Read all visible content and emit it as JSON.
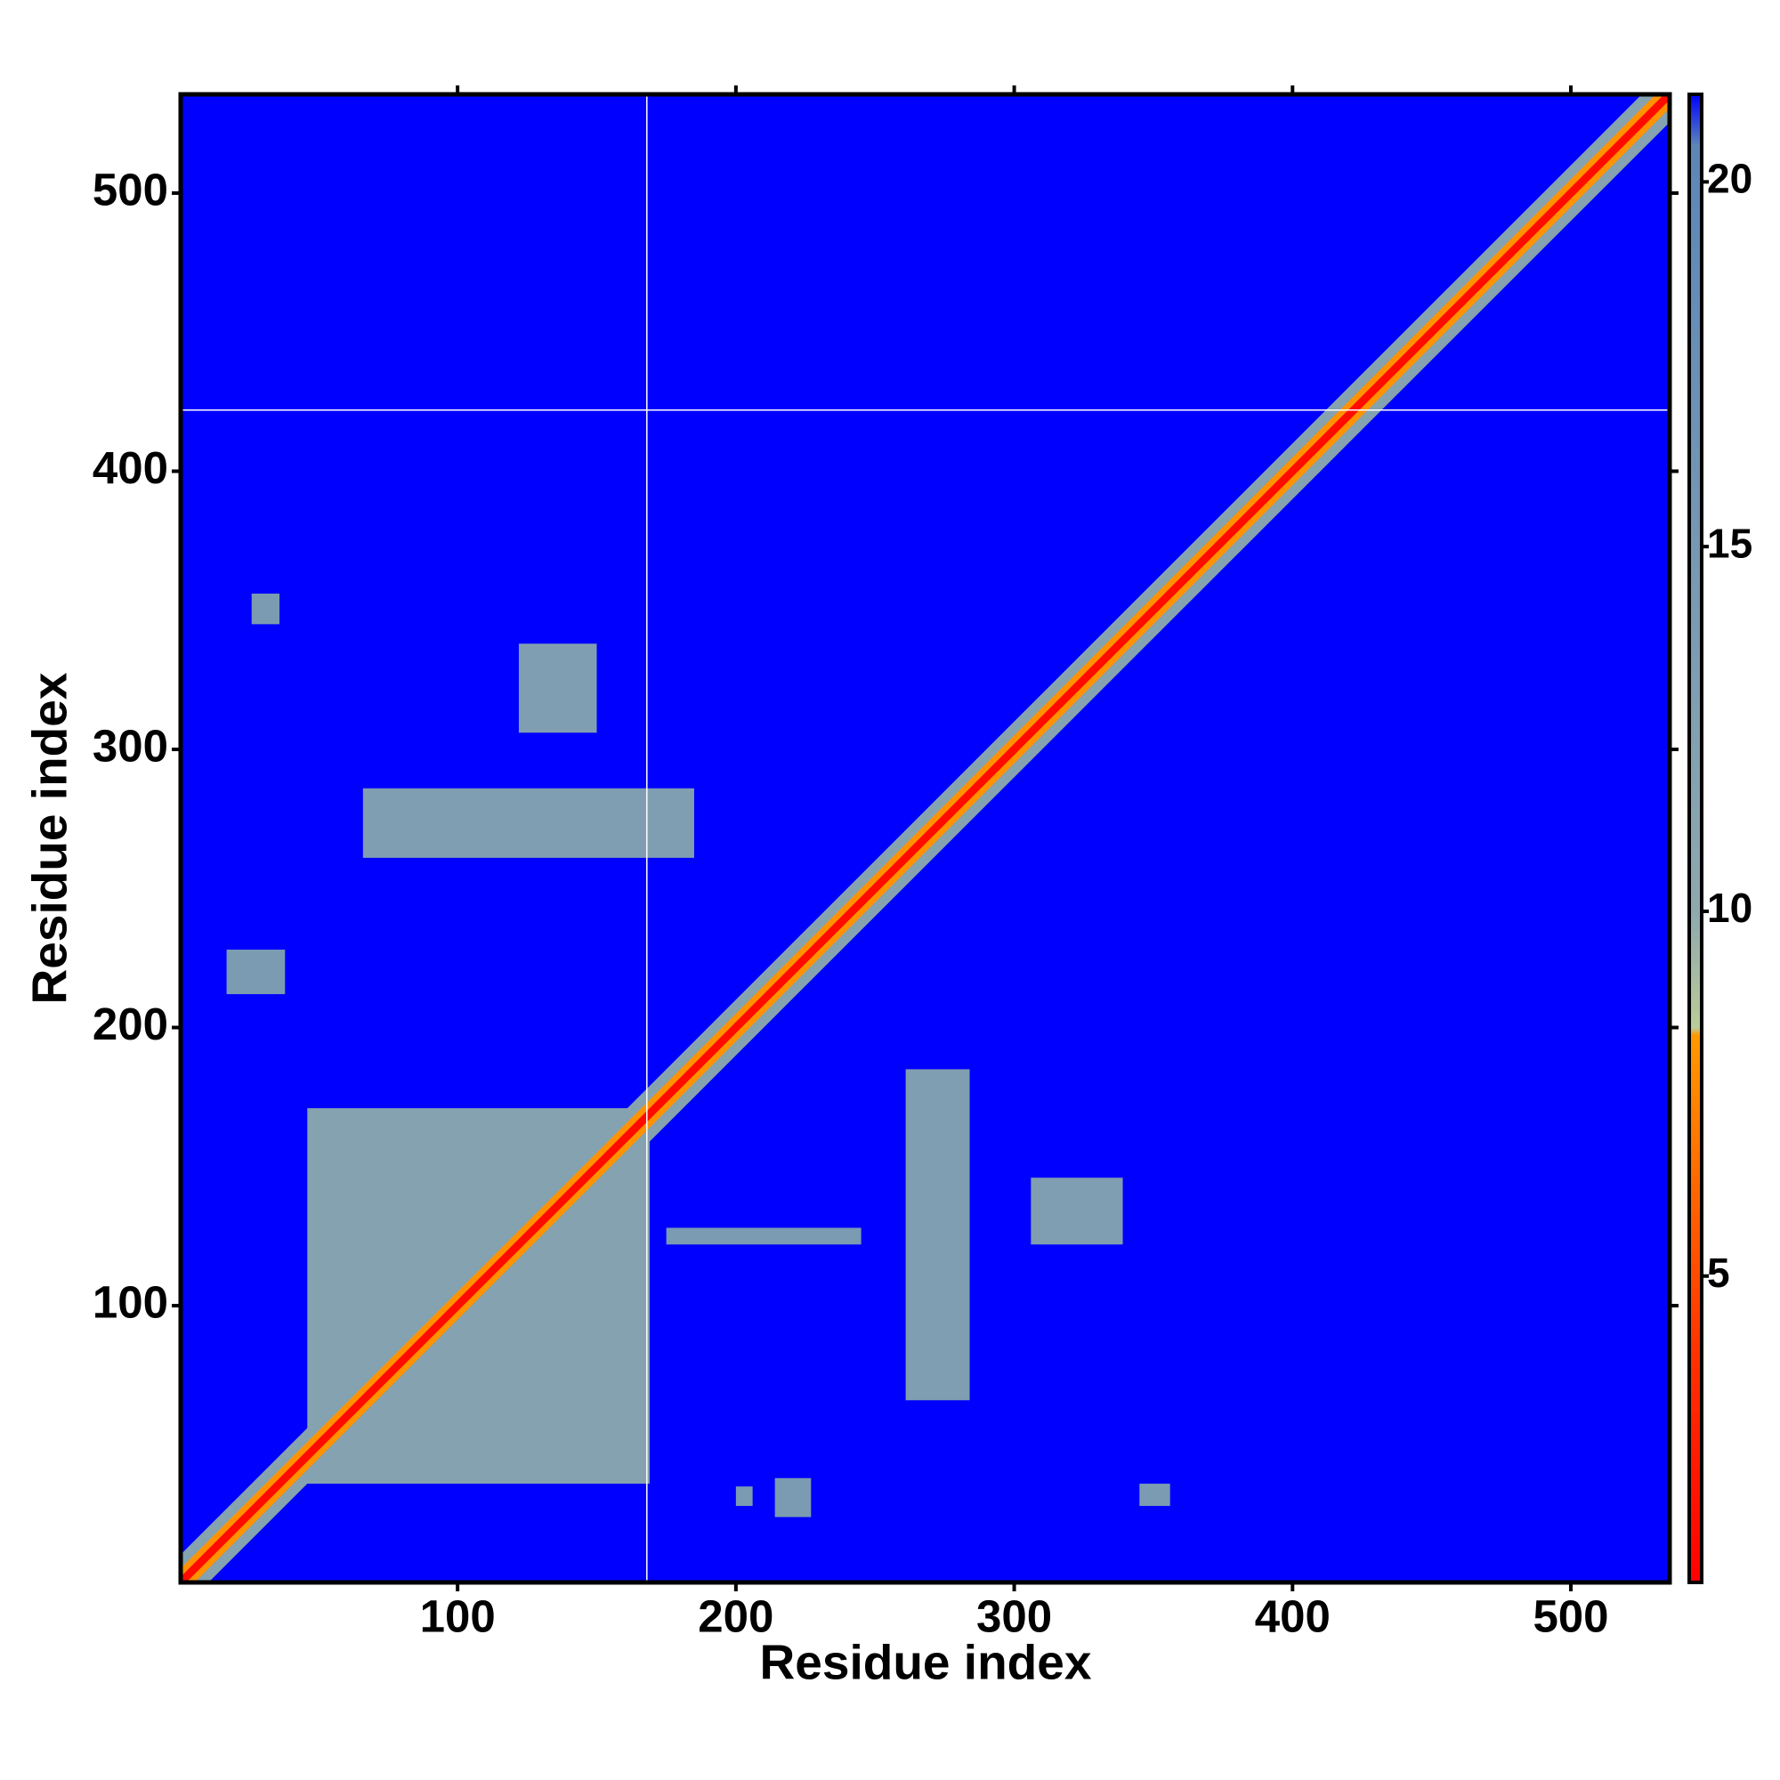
{
  "chart_data": {
    "type": "heatmap",
    "xlabel": "Residue index",
    "ylabel": "Residue index",
    "xlim": [
      0.5,
      535.5
    ],
    "ylim": [
      0.5,
      535.5
    ],
    "xticks": [
      100,
      200,
      300,
      400,
      500
    ],
    "yticks": [
      100,
      200,
      300,
      400,
      500
    ],
    "zlim": [
      0.8,
      21.2
    ],
    "zticks": [
      5,
      10,
      15,
      20
    ],
    "colorscale": [
      [
        0.8,
        "#ff0000"
      ],
      [
        4,
        "#ff3300"
      ],
      [
        8.3,
        "#ff9900"
      ],
      [
        8.4,
        "#b9cc98"
      ],
      [
        10,
        "#8fa8ae"
      ],
      [
        20.5,
        "#5b86b8"
      ],
      [
        21.2,
        "#0000ff"
      ]
    ],
    "background_value": 21.2,
    "patches": [
      {
        "x": [
          46,
          169
        ],
        "y": [
          36,
          171
        ],
        "value": 12
      },
      {
        "x": [
          66,
          185
        ],
        "y": [
          261,
          286
        ],
        "value": 13
      },
      {
        "x": [
          122,
          150
        ],
        "y": [
          306,
          338
        ],
        "value": 13
      },
      {
        "x": [
          261,
          284
        ],
        "y": [
          66,
          185
        ],
        "value": 13
      },
      {
        "x": [
          306,
          339
        ],
        "y": [
          122,
          146
        ],
        "value": 13
      },
      {
        "x": [
          175,
          245
        ],
        "y": [
          122,
          128
        ],
        "value": 14
      },
      {
        "x": [
          17,
          38
        ],
        "y": [
          212,
          228
        ],
        "value": 14
      },
      {
        "x": [
          26,
          36
        ],
        "y": [
          345,
          356
        ],
        "value": 14
      },
      {
        "x": [
          214,
          227
        ],
        "y": [
          24,
          38
        ],
        "value": 14
      },
      {
        "x": [
          345,
          356
        ],
        "y": [
          28,
          36
        ],
        "value": 14
      },
      {
        "x": [
          200,
          206
        ],
        "y": [
          28,
          35
        ],
        "value": 14
      }
    ],
    "diagonal_bands": [
      {
        "from": 1,
        "to": 535,
        "half_width": 10,
        "value": 12
      },
      {
        "from": 1,
        "to": 535,
        "half_width": 5,
        "value": 8
      },
      {
        "from": 1,
        "to": 535,
        "half_width": 2,
        "value": 1.5
      }
    ],
    "gap_lines": {
      "x": [
        168
      ],
      "y": [
        422
      ]
    }
  }
}
